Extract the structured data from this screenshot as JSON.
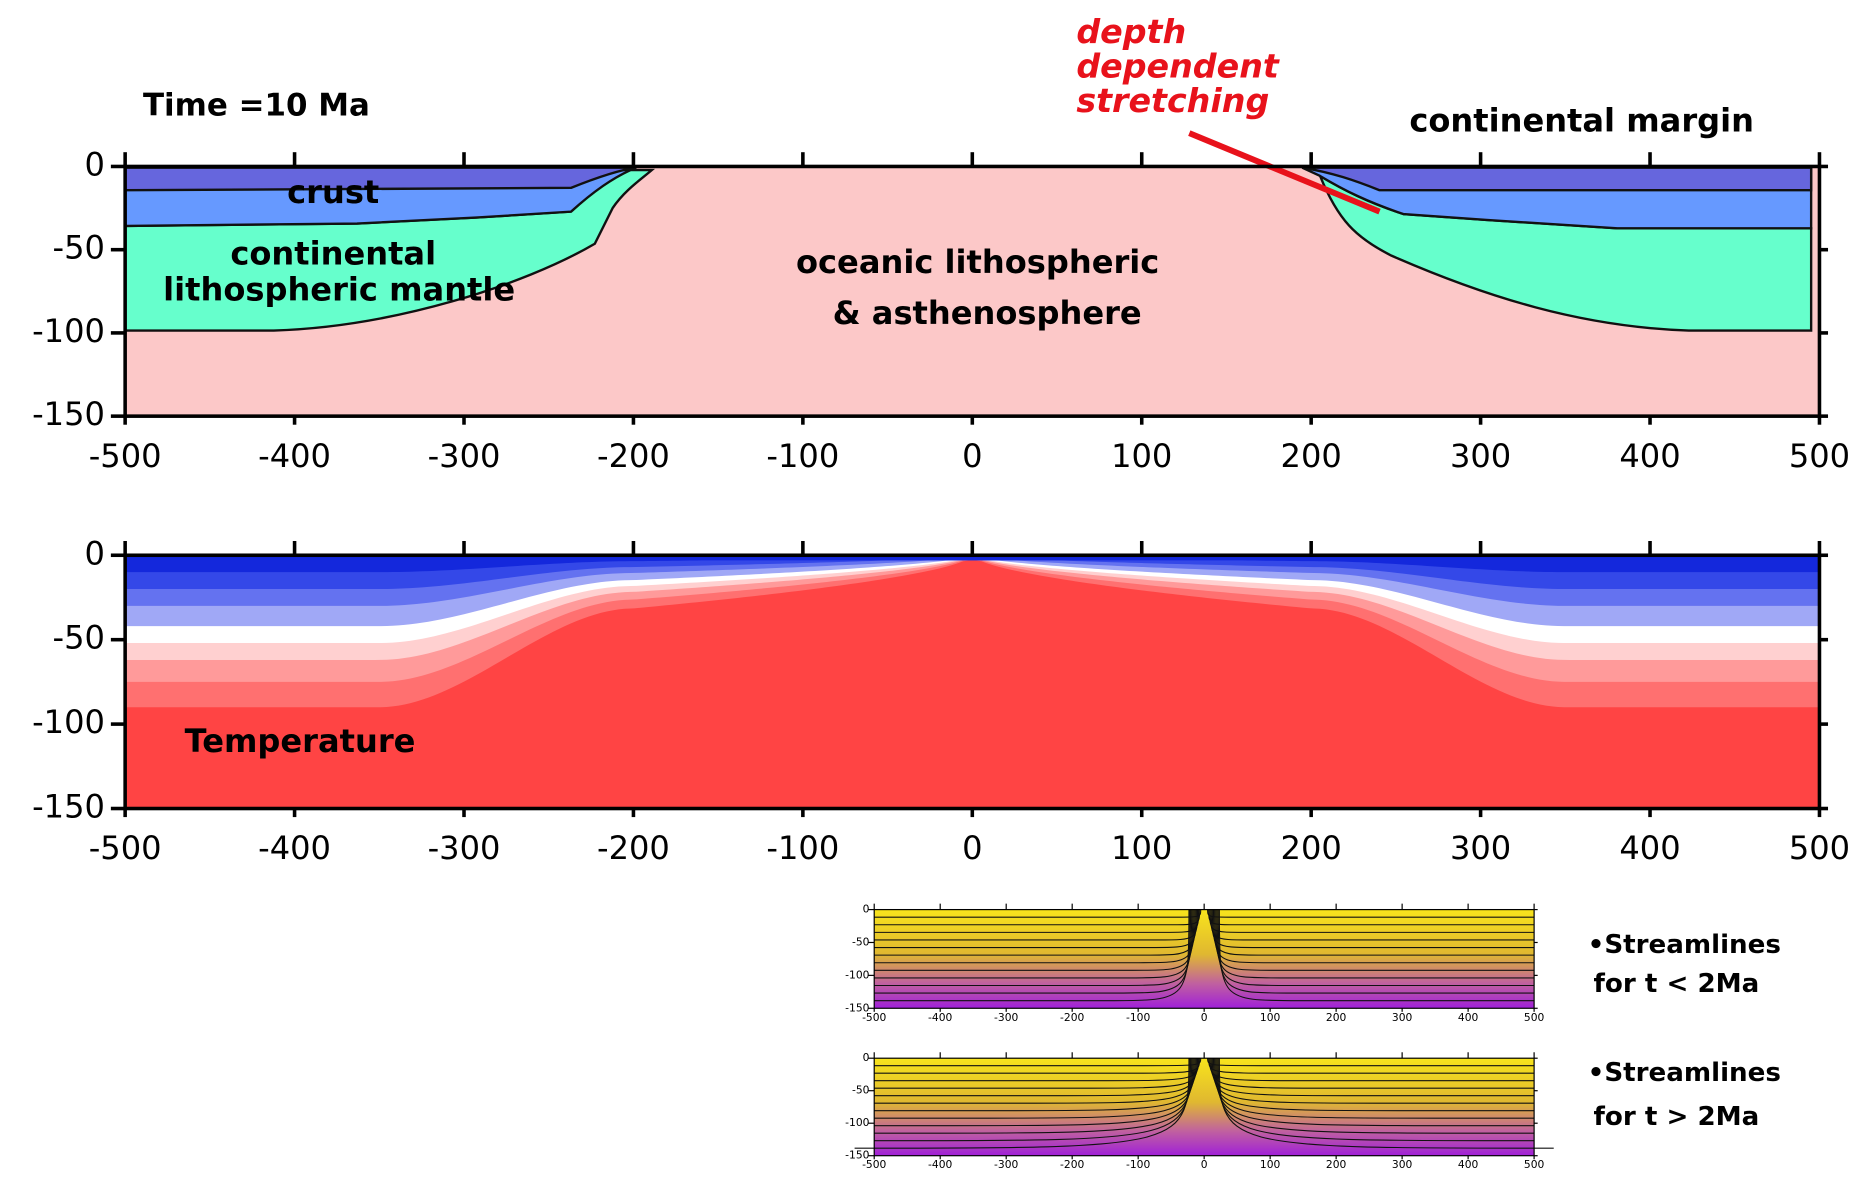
{
  "chart_data": [
    {
      "type": "cross-section",
      "title": "Time =10 Ma",
      "xlim": [
        -500,
        500
      ],
      "ylim": [
        -150,
        0
      ],
      "xticks": [
        -500,
        -400,
        -300,
        -200,
        -100,
        0,
        100,
        200,
        300,
        400,
        500
      ],
      "yticks": [
        0,
        -50,
        -100,
        -150
      ],
      "labels": [
        {
          "lines": [
            "crust"
          ]
        },
        {
          "lines": [
            "continental",
            "lithospheric mantle"
          ]
        },
        {
          "lines": [
            "oceanic lithospheric",
            "& asthenosphere"
          ]
        },
        {
          "lines": [
            "continental margin"
          ]
        },
        {
          "lines": [
            "depth",
            "dependent",
            "stretching"
          ],
          "color": "#e8121b"
        }
      ]
    },
    {
      "type": "temperature",
      "xlim": [
        -500,
        500
      ],
      "ylim": [
        -150,
        0
      ],
      "xticks": [
        -500,
        -400,
        -300,
        -200,
        -100,
        0,
        100,
        200,
        300,
        400,
        500
      ],
      "yticks": [
        0,
        -50,
        -100,
        -150
      ],
      "labels": [
        {
          "lines": [
            "Temperature"
          ]
        }
      ]
    },
    {
      "type": "streamlines",
      "xlim": [
        -500,
        500
      ],
      "ylim": [
        -150,
        0
      ],
      "xticks": [
        -500,
        -400,
        -300,
        -200,
        -100,
        0,
        100,
        200,
        300,
        400,
        500
      ],
      "yticks": [
        0,
        -50,
        -100,
        -150
      ],
      "caption": [
        "•Streamlines",
        "for t < 2Ma"
      ]
    },
    {
      "type": "streamlines",
      "xlim": [
        -500,
        500
      ],
      "ylim": [
        -150,
        0
      ],
      "xticks": [
        -500,
        -400,
        -300,
        -200,
        -100,
        0,
        100,
        200,
        300,
        400,
        500
      ],
      "yticks": [
        0,
        -50,
        -100,
        -150
      ],
      "caption": [
        "•Streamlines",
        "for t > 2Ma"
      ]
    }
  ]
}
